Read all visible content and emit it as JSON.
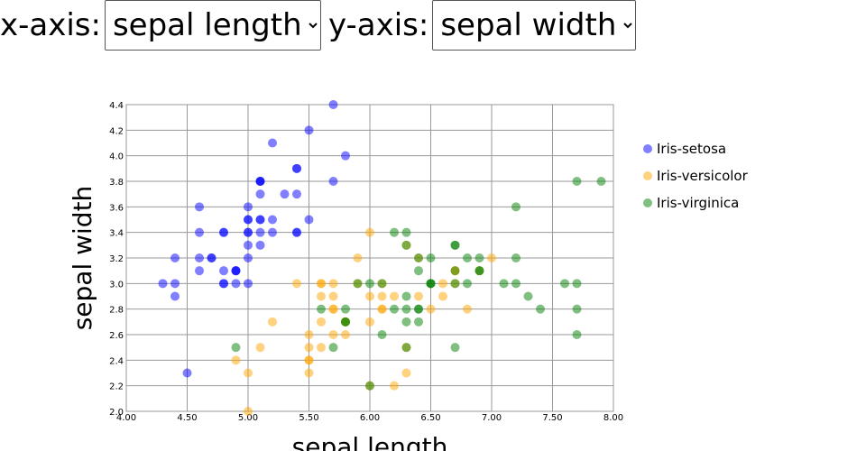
{
  "controls": [
    {
      "label": "x-axis:",
      "selected": "sepal length"
    },
    {
      "label": "y-axis:",
      "selected": "sepal width"
    }
  ],
  "chart_data": {
    "type": "scatter",
    "xlabel": "sepal length",
    "ylabel": "sepal width",
    "xlim": [
      4.0,
      8.0
    ],
    "ylim": [
      2.0,
      4.4
    ],
    "grid": true,
    "legend": "right",
    "xticks": [
      {
        "value": 4.0,
        "label": "4.00"
      },
      {
        "value": 4.5,
        "label": "4.50"
      },
      {
        "value": 5.0,
        "label": "5.00"
      },
      {
        "value": 5.5,
        "label": "5.50"
      },
      {
        "value": 6.0,
        "label": "6.00"
      },
      {
        "value": 6.5,
        "label": "6.50"
      },
      {
        "value": 7.0,
        "label": "7.00"
      },
      {
        "value": 7.5,
        "label": "7.50"
      },
      {
        "value": 8.0,
        "label": "8.00"
      }
    ],
    "yticks": [
      {
        "value": 2.0,
        "label": "2.0"
      },
      2.2,
      2.4,
      2.6,
      2.8,
      {
        "value": 3.0,
        "label": "3.0"
      },
      3.2,
      3.4,
      3.6,
      3.8,
      {
        "value": 4.0,
        "label": "4.0"
      },
      4.2,
      4.4
    ],
    "series": [
      {
        "name": "Iris-setosa",
        "color": "#0000ff",
        "x": [
          5.1,
          4.9,
          4.7,
          4.6,
          5.0,
          5.4,
          4.6,
          5.0,
          4.4,
          4.9,
          5.4,
          4.8,
          4.8,
          4.3,
          5.8,
          5.7,
          5.4,
          5.1,
          5.7,
          5.1,
          5.4,
          5.1,
          4.6,
          5.1,
          4.8,
          5.0,
          5.0,
          5.2,
          5.2,
          4.7,
          4.8,
          5.4,
          5.2,
          5.5,
          4.9,
          5.0,
          5.5,
          4.9,
          4.4,
          5.1,
          5.0,
          4.5,
          4.4,
          5.0,
          5.1,
          4.8,
          5.1,
          4.6,
          5.3,
          5.0
        ],
        "values": [
          3.5,
          3.0,
          3.2,
          3.1,
          3.6,
          3.9,
          3.4,
          3.4,
          2.9,
          3.1,
          3.7,
          3.4,
          3.0,
          3.0,
          4.0,
          4.4,
          3.9,
          3.5,
          3.8,
          3.8,
          3.4,
          3.7,
          3.6,
          3.3,
          3.4,
          3.0,
          3.4,
          3.5,
          3.4,
          3.2,
          3.1,
          3.4,
          4.1,
          4.2,
          3.1,
          3.2,
          3.5,
          3.1,
          3.0,
          3.4,
          3.5,
          2.3,
          3.2,
          3.5,
          3.8,
          3.0,
          3.8,
          3.2,
          3.7,
          3.3
        ]
      },
      {
        "name": "Iris-versicolor",
        "color": "#ffa500",
        "x": [
          7.0,
          6.4,
          6.9,
          5.5,
          6.5,
          5.7,
          6.3,
          4.9,
          6.6,
          5.2,
          5.0,
          5.9,
          6.0,
          6.1,
          5.6,
          6.7,
          5.6,
          5.8,
          6.2,
          5.6,
          5.9,
          6.1,
          6.3,
          6.1,
          6.4,
          6.6,
          6.8,
          6.7,
          6.0,
          5.7,
          5.5,
          5.5,
          5.8,
          6.0,
          5.4,
          6.0,
          6.7,
          6.3,
          5.6,
          5.5,
          5.5,
          6.1,
          5.8,
          5.0,
          5.6,
          5.7,
          5.7,
          6.2,
          5.1,
          5.7
        ],
        "values": [
          3.2,
          3.2,
          3.1,
          2.3,
          2.8,
          2.8,
          3.3,
          2.4,
          2.9,
          2.7,
          2.0,
          3.0,
          2.2,
          2.9,
          2.9,
          3.1,
          3.0,
          2.7,
          2.2,
          2.5,
          3.2,
          2.8,
          2.5,
          2.8,
          2.9,
          3.0,
          2.8,
          3.0,
          2.9,
          2.6,
          2.4,
          2.4,
          2.7,
          2.7,
          3.0,
          3.4,
          3.1,
          2.3,
          3.0,
          2.5,
          2.6,
          3.0,
          2.6,
          2.3,
          2.7,
          3.0,
          2.9,
          2.9,
          2.5,
          2.8
        ]
      },
      {
        "name": "Iris-virginica",
        "color": "#008000",
        "x": [
          6.3,
          5.8,
          7.1,
          6.3,
          6.5,
          7.6,
          4.9,
          7.3,
          6.7,
          7.2,
          6.5,
          6.4,
          6.8,
          5.7,
          5.8,
          6.4,
          6.5,
          7.7,
          7.7,
          6.0,
          6.9,
          5.6,
          7.7,
          6.3,
          6.7,
          7.2,
          6.2,
          6.1,
          6.4,
          7.2,
          7.4,
          7.9,
          6.4,
          6.3,
          6.1,
          7.7,
          6.3,
          6.4,
          6.0,
          6.9,
          6.7,
          6.9,
          5.8,
          6.8,
          6.7,
          6.7,
          6.3,
          6.5,
          6.2,
          5.9
        ],
        "values": [
          3.3,
          2.7,
          3.0,
          2.9,
          3.0,
          3.0,
          2.5,
          2.9,
          2.5,
          3.6,
          3.2,
          2.7,
          3.0,
          2.5,
          2.8,
          3.2,
          3.0,
          3.8,
          2.6,
          2.2,
          3.2,
          2.8,
          2.8,
          2.7,
          3.3,
          3.2,
          2.8,
          3.0,
          2.8,
          3.0,
          2.8,
          3.8,
          2.8,
          2.8,
          2.6,
          3.0,
          3.4,
          3.1,
          3.0,
          3.1,
          3.1,
          3.1,
          2.7,
          3.2,
          3.3,
          3.0,
          2.5,
          3.0,
          3.4,
          3.0
        ]
      }
    ]
  }
}
